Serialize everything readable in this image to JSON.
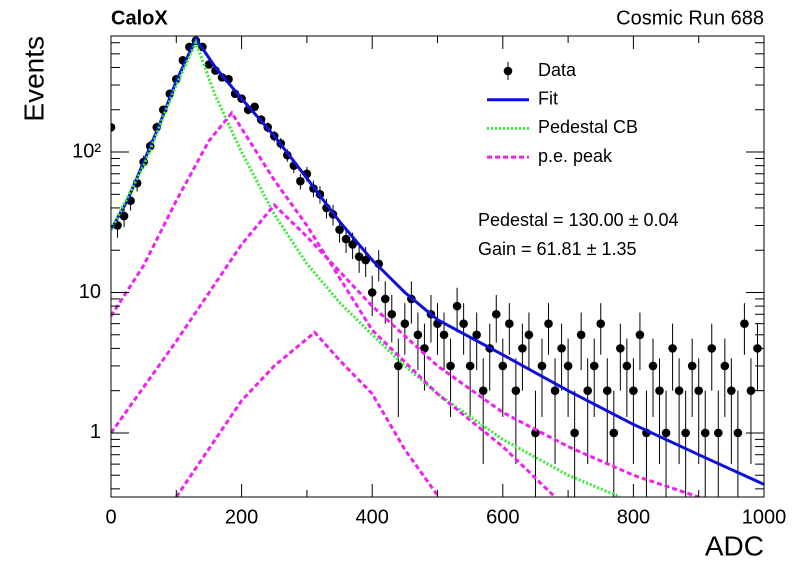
{
  "chart_data": {
    "type": "line",
    "title": "CaloX",
    "subtitle": "Cosmic Run 688",
    "x_label": "ADC",
    "y_label": "Events",
    "log_y": true,
    "xlim": [
      0,
      1000
    ],
    "xticks": [
      0,
      200,
      400,
      600,
      800,
      1000
    ],
    "xminorticks": [
      100,
      300,
      500,
      700,
      900
    ],
    "ylim": [
      0.35,
      670
    ],
    "yticks": [
      1,
      10,
      {
        "value": 100,
        "label": "10²"
      }
    ],
    "yminorticks": [
      0.4,
      0.5,
      0.6,
      0.7,
      0.8,
      0.9,
      2,
      3,
      4,
      5,
      6,
      7,
      8,
      9,
      20,
      30,
      40,
      50,
      60,
      70,
      80,
      90,
      200,
      300,
      400,
      500,
      600
    ],
    "legend": "top-right",
    "annotations": [
      "Pedestal = 130.00 ± 0.04",
      "Gain = 61.81 ± 1.35"
    ],
    "series": [
      {
        "name": "Data",
        "type": "scatter",
        "color": "#000000",
        "x": [
          0,
          10,
          20,
          30,
          40,
          50,
          60,
          70,
          80,
          90,
          100,
          110,
          120,
          130,
          140,
          150,
          160,
          170,
          180,
          190,
          200,
          210,
          220,
          230,
          240,
          250,
          260,
          270,
          280,
          290,
          300,
          310,
          320,
          330,
          340,
          350,
          360,
          370,
          380,
          390,
          400,
          410,
          420,
          430,
          440,
          450,
          460,
          470,
          480,
          490,
          500,
          510,
          520,
          530,
          540,
          550,
          560,
          570,
          580,
          590,
          600,
          610,
          620,
          630,
          640,
          650,
          660,
          670,
          680,
          690,
          700,
          710,
          720,
          730,
          740,
          750,
          760,
          770,
          780,
          790,
          800,
          810,
          820,
          830,
          840,
          850,
          860,
          870,
          880,
          890,
          900,
          910,
          920,
          930,
          940,
          950,
          960,
          970,
          980,
          990
        ],
        "values": [
          150,
          30,
          35,
          45,
          60,
          85,
          110,
          150,
          200,
          260,
          330,
          450,
          560,
          620,
          560,
          420,
          380,
          340,
          330,
          260,
          240,
          200,
          210,
          170,
          150,
          130,
          115,
          95,
          80,
          62,
          70,
          55,
          50,
          40,
          36,
          28,
          24,
          22,
          18,
          17,
          10,
          16,
          9,
          7,
          3,
          6,
          9,
          5,
          4,
          7,
          6,
          5,
          3,
          8,
          6,
          3,
          5,
          2,
          4,
          7,
          3,
          6,
          2,
          4,
          5,
          1,
          3,
          6,
          2,
          4,
          3,
          1,
          5,
          2,
          3,
          6,
          2,
          1,
          4,
          3,
          2,
          5,
          1,
          3,
          2,
          1,
          4,
          2,
          1,
          3,
          2,
          1,
          4,
          1,
          3,
          2,
          1,
          6,
          2,
          4
        ],
        "errors": [
          12.2,
          5.5,
          5.9,
          6.7,
          7.7,
          9.2,
          10.5,
          12.2,
          14.1,
          16.1,
          18.2,
          21.2,
          23.7,
          24.9,
          23.7,
          20.5,
          19.5,
          18.4,
          18.2,
          16.1,
          15.5,
          14.1,
          14.5,
          13,
          12.2,
          11.4,
          10.7,
          9.7,
          8.9,
          7.9,
          8.4,
          7.4,
          7.1,
          6.3,
          6,
          5.3,
          4.9,
          4.7,
          4.2,
          4.1,
          3.2,
          4,
          3,
          2.6,
          1.7,
          2.4,
          3,
          2.2,
          2,
          2.6,
          2.4,
          2.2,
          1.7,
          2.8,
          2.4,
          1.7,
          2.2,
          1.4,
          2,
          2.6,
          1.7,
          2.4,
          1.4,
          2,
          2.2,
          1,
          1.7,
          2.4,
          1.4,
          2,
          1.7,
          1,
          2.2,
          1.4,
          1.7,
          2.4,
          1.4,
          1,
          2,
          1.7,
          1.4,
          2.2,
          1,
          1.7,
          1.4,
          1,
          2,
          1.4,
          1,
          1.7,
          1.4,
          1,
          2,
          1,
          1.7,
          1.4,
          1,
          2.4,
          1.4,
          2
        ]
      },
      {
        "name": "Fit",
        "type": "line",
        "color": "#1010d8",
        "x": [
          0,
          25,
          50,
          75,
          100,
          130,
          160,
          200,
          250,
          300,
          350,
          400,
          450,
          500,
          600,
          700,
          800,
          900,
          1000
        ],
        "values": [
          28,
          45,
          85,
          160,
          320,
          640,
          400,
          240,
          130,
          65,
          32,
          17,
          10,
          6.4,
          3.6,
          2.0,
          1.15,
          0.7,
          0.43
        ]
      },
      {
        "name": "Pedestal CB",
        "type": "line",
        "style": "dotted",
        "color": "#33ee33",
        "x": [
          0,
          50,
          100,
          130,
          160,
          200,
          250,
          300,
          350,
          400,
          450,
          500,
          600,
          700,
          780
        ],
        "values": [
          28,
          80,
          300,
          600,
          250,
          100,
          36,
          16,
          8.5,
          5,
          3,
          1.9,
          0.9,
          0.5,
          0.35
        ]
      },
      {
        "name": "p.e. peak",
        "type": "line",
        "style": "dashed",
        "color": "#ee22ee",
        "curves": [
          {
            "x": [
              0,
              50,
              100,
              150,
              185,
              250,
              300,
              400,
              500,
              600,
              680
            ],
            "values": [
              6.8,
              15.6,
              45,
              120,
              190,
              63,
              30,
              5.4,
              1.9,
              0.8,
              0.35
            ]
          },
          {
            "x": [
              0,
              100,
              200,
              250,
              300,
              400,
              500,
              600,
              700,
              800,
              900
            ],
            "values": [
              1,
              4.5,
              22,
              42,
              25,
              8,
              3,
              1.4,
              0.8,
              0.5,
              0.35
            ]
          },
          {
            "x": [
              100,
              200,
              250,
              312,
              350,
              400,
              450,
              500
            ],
            "values": [
              0.35,
              1.7,
              3,
              5.2,
              3.3,
              1.9,
              0.76,
              0.36
            ]
          }
        ]
      }
    ]
  }
}
